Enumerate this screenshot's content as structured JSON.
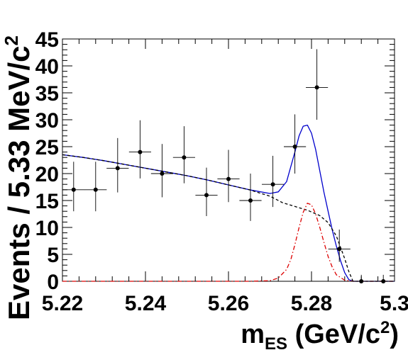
{
  "chart_data": {
    "type": "scatter",
    "title": "",
    "xlabel": {
      "main": "m",
      "sub": "ES",
      "rest": " (GeV/c",
      "sup": "2",
      "close": ")"
    },
    "ylabel": {
      "main": "Events / 5.33 MeV/c",
      "sup": "2"
    },
    "xlim": [
      5.22,
      5.3
    ],
    "ylim": [
      0,
      45
    ],
    "x_ticks": [
      5.22,
      5.24,
      5.26,
      5.28,
      5.3
    ],
    "x_tick_labels": [
      "5.22",
      "5.24",
      "5.26",
      "5.28",
      "5.3"
    ],
    "y_ticks": [
      0,
      5,
      10,
      15,
      20,
      25,
      30,
      35,
      40,
      45
    ],
    "y_tick_labels": [
      "0",
      "5",
      "10",
      "15",
      "20",
      "25",
      "30",
      "35",
      "40",
      "45"
    ],
    "grid": false,
    "bin_width": 0.00533,
    "series": [
      {
        "kind": "data-points",
        "color": "#000000",
        "points": [
          {
            "x": 5.2227,
            "y": 17,
            "err_lo": 4.0,
            "err_hi": 5.2
          },
          {
            "x": 5.228,
            "y": 17,
            "err_lo": 4.0,
            "err_hi": 5.2
          },
          {
            "x": 5.2333,
            "y": 21,
            "err_lo": 4.5,
            "err_hi": 5.6
          },
          {
            "x": 5.2387,
            "y": 24,
            "err_lo": 4.9,
            "err_hi": 5.9
          },
          {
            "x": 5.244,
            "y": 20,
            "err_lo": 4.4,
            "err_hi": 5.5
          },
          {
            "x": 5.2493,
            "y": 23,
            "err_lo": 4.8,
            "err_hi": 5.8
          },
          {
            "x": 5.2547,
            "y": 16,
            "err_lo": 3.9,
            "err_hi": 5.1
          },
          {
            "x": 5.26,
            "y": 19,
            "err_lo": 4.3,
            "err_hi": 5.4
          },
          {
            "x": 5.2653,
            "y": 15,
            "err_lo": 3.8,
            "err_hi": 5.0
          },
          {
            "x": 5.2707,
            "y": 18,
            "err_lo": 4.2,
            "err_hi": 5.3
          },
          {
            "x": 5.276,
            "y": 25,
            "err_lo": 5.0,
            "err_hi": 6.0
          },
          {
            "x": 5.2813,
            "y": 36,
            "err_lo": 6.0,
            "err_hi": 7.1
          },
          {
            "x": 5.2867,
            "y": 6,
            "err_lo": 2.4,
            "err_hi": 3.6
          },
          {
            "x": 5.292,
            "y": 0,
            "err_lo": 0,
            "err_hi": 1.2
          },
          {
            "x": 5.2973,
            "y": 0,
            "err_lo": 0,
            "err_hi": 1.2
          }
        ]
      },
      {
        "kind": "total-fit",
        "color": "#0000cc",
        "style": "solid",
        "x": [
          5.22,
          5.225,
          5.23,
          5.235,
          5.24,
          5.245,
          5.25,
          5.255,
          5.26,
          5.265,
          5.27,
          5.272,
          5.274,
          5.276,
          5.277,
          5.278,
          5.279,
          5.28,
          5.281,
          5.282,
          5.283,
          5.284,
          5.285,
          5.286,
          5.287,
          5.288,
          5.289,
          5.29,
          5.295,
          5.3
        ],
        "y": [
          23.5,
          23.0,
          22.4,
          21.7,
          21.0,
          20.3,
          19.6,
          18.8,
          17.9,
          17.0,
          16.3,
          16.6,
          18.5,
          24.0,
          27.0,
          28.8,
          29.0,
          27.5,
          24.5,
          20.5,
          16.5,
          13.0,
          9.5,
          6.5,
          3.8,
          1.6,
          0.3,
          0,
          0,
          0
        ]
      },
      {
        "kind": "background-fit",
        "color": "#000000",
        "style": "dashed",
        "x": [
          5.22,
          5.225,
          5.23,
          5.235,
          5.24,
          5.245,
          5.25,
          5.255,
          5.26,
          5.265,
          5.27,
          5.273,
          5.276,
          5.279,
          5.282,
          5.284,
          5.286,
          5.288,
          5.289,
          5.29,
          5.295,
          5.3
        ],
        "y": [
          23.5,
          23.0,
          22.4,
          21.7,
          21.0,
          20.3,
          19.6,
          18.8,
          17.9,
          17.0,
          15.8,
          14.6,
          13.9,
          13.2,
          12.2,
          10.9,
          8.4,
          4.2,
          1.8,
          0,
          0,
          0
        ]
      },
      {
        "kind": "signal-fit",
        "color": "#dd0000",
        "style": "dash-dot",
        "x": [
          5.22,
          5.265,
          5.27,
          5.272,
          5.274,
          5.275,
          5.276,
          5.277,
          5.278,
          5.279,
          5.28,
          5.281,
          5.282,
          5.283,
          5.284,
          5.285,
          5.286,
          5.288,
          5.29,
          5.3
        ],
        "y": [
          0,
          0,
          0.1,
          0.6,
          2.2,
          4.0,
          6.8,
          10.0,
          12.8,
          14.5,
          14.2,
          12.5,
          10.0,
          7.2,
          4.6,
          2.6,
          1.2,
          0.2,
          0,
          0
        ]
      }
    ]
  }
}
